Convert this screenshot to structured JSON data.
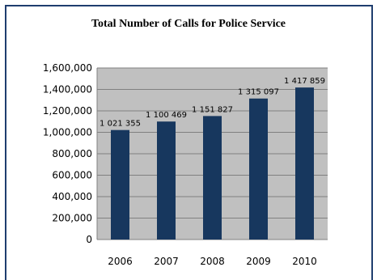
{
  "chart_data": {
    "type": "bar",
    "title": "Total Number of Calls for Police Service",
    "categories": [
      "2006",
      "2007",
      "2008",
      "2009",
      "2010"
    ],
    "values": [
      1021355,
      1100469,
      1151827,
      1315097,
      1417859
    ],
    "data_labels": [
      "1 021 355",
      "1 100 469",
      "1 151 827",
      "1 315 097",
      "1 417 859"
    ],
    "y_ticks": [
      0,
      200000,
      400000,
      600000,
      800000,
      1000000,
      1200000,
      1400000,
      1600000
    ],
    "y_tick_labels": [
      "0",
      "200,000",
      "400,000",
      "600,000",
      "800,000",
      "1,000,000",
      "1,200,000",
      "1,400,000",
      "1,600,000"
    ],
    "ylim": [
      0,
      1600000
    ],
    "xlabel": "",
    "ylabel": "",
    "grid": true,
    "legend": "none",
    "colors": {
      "bar": "#17375e",
      "plot_background": "#c0c0c0",
      "gridline": "#808080",
      "frame": "#1f3d6e"
    }
  }
}
